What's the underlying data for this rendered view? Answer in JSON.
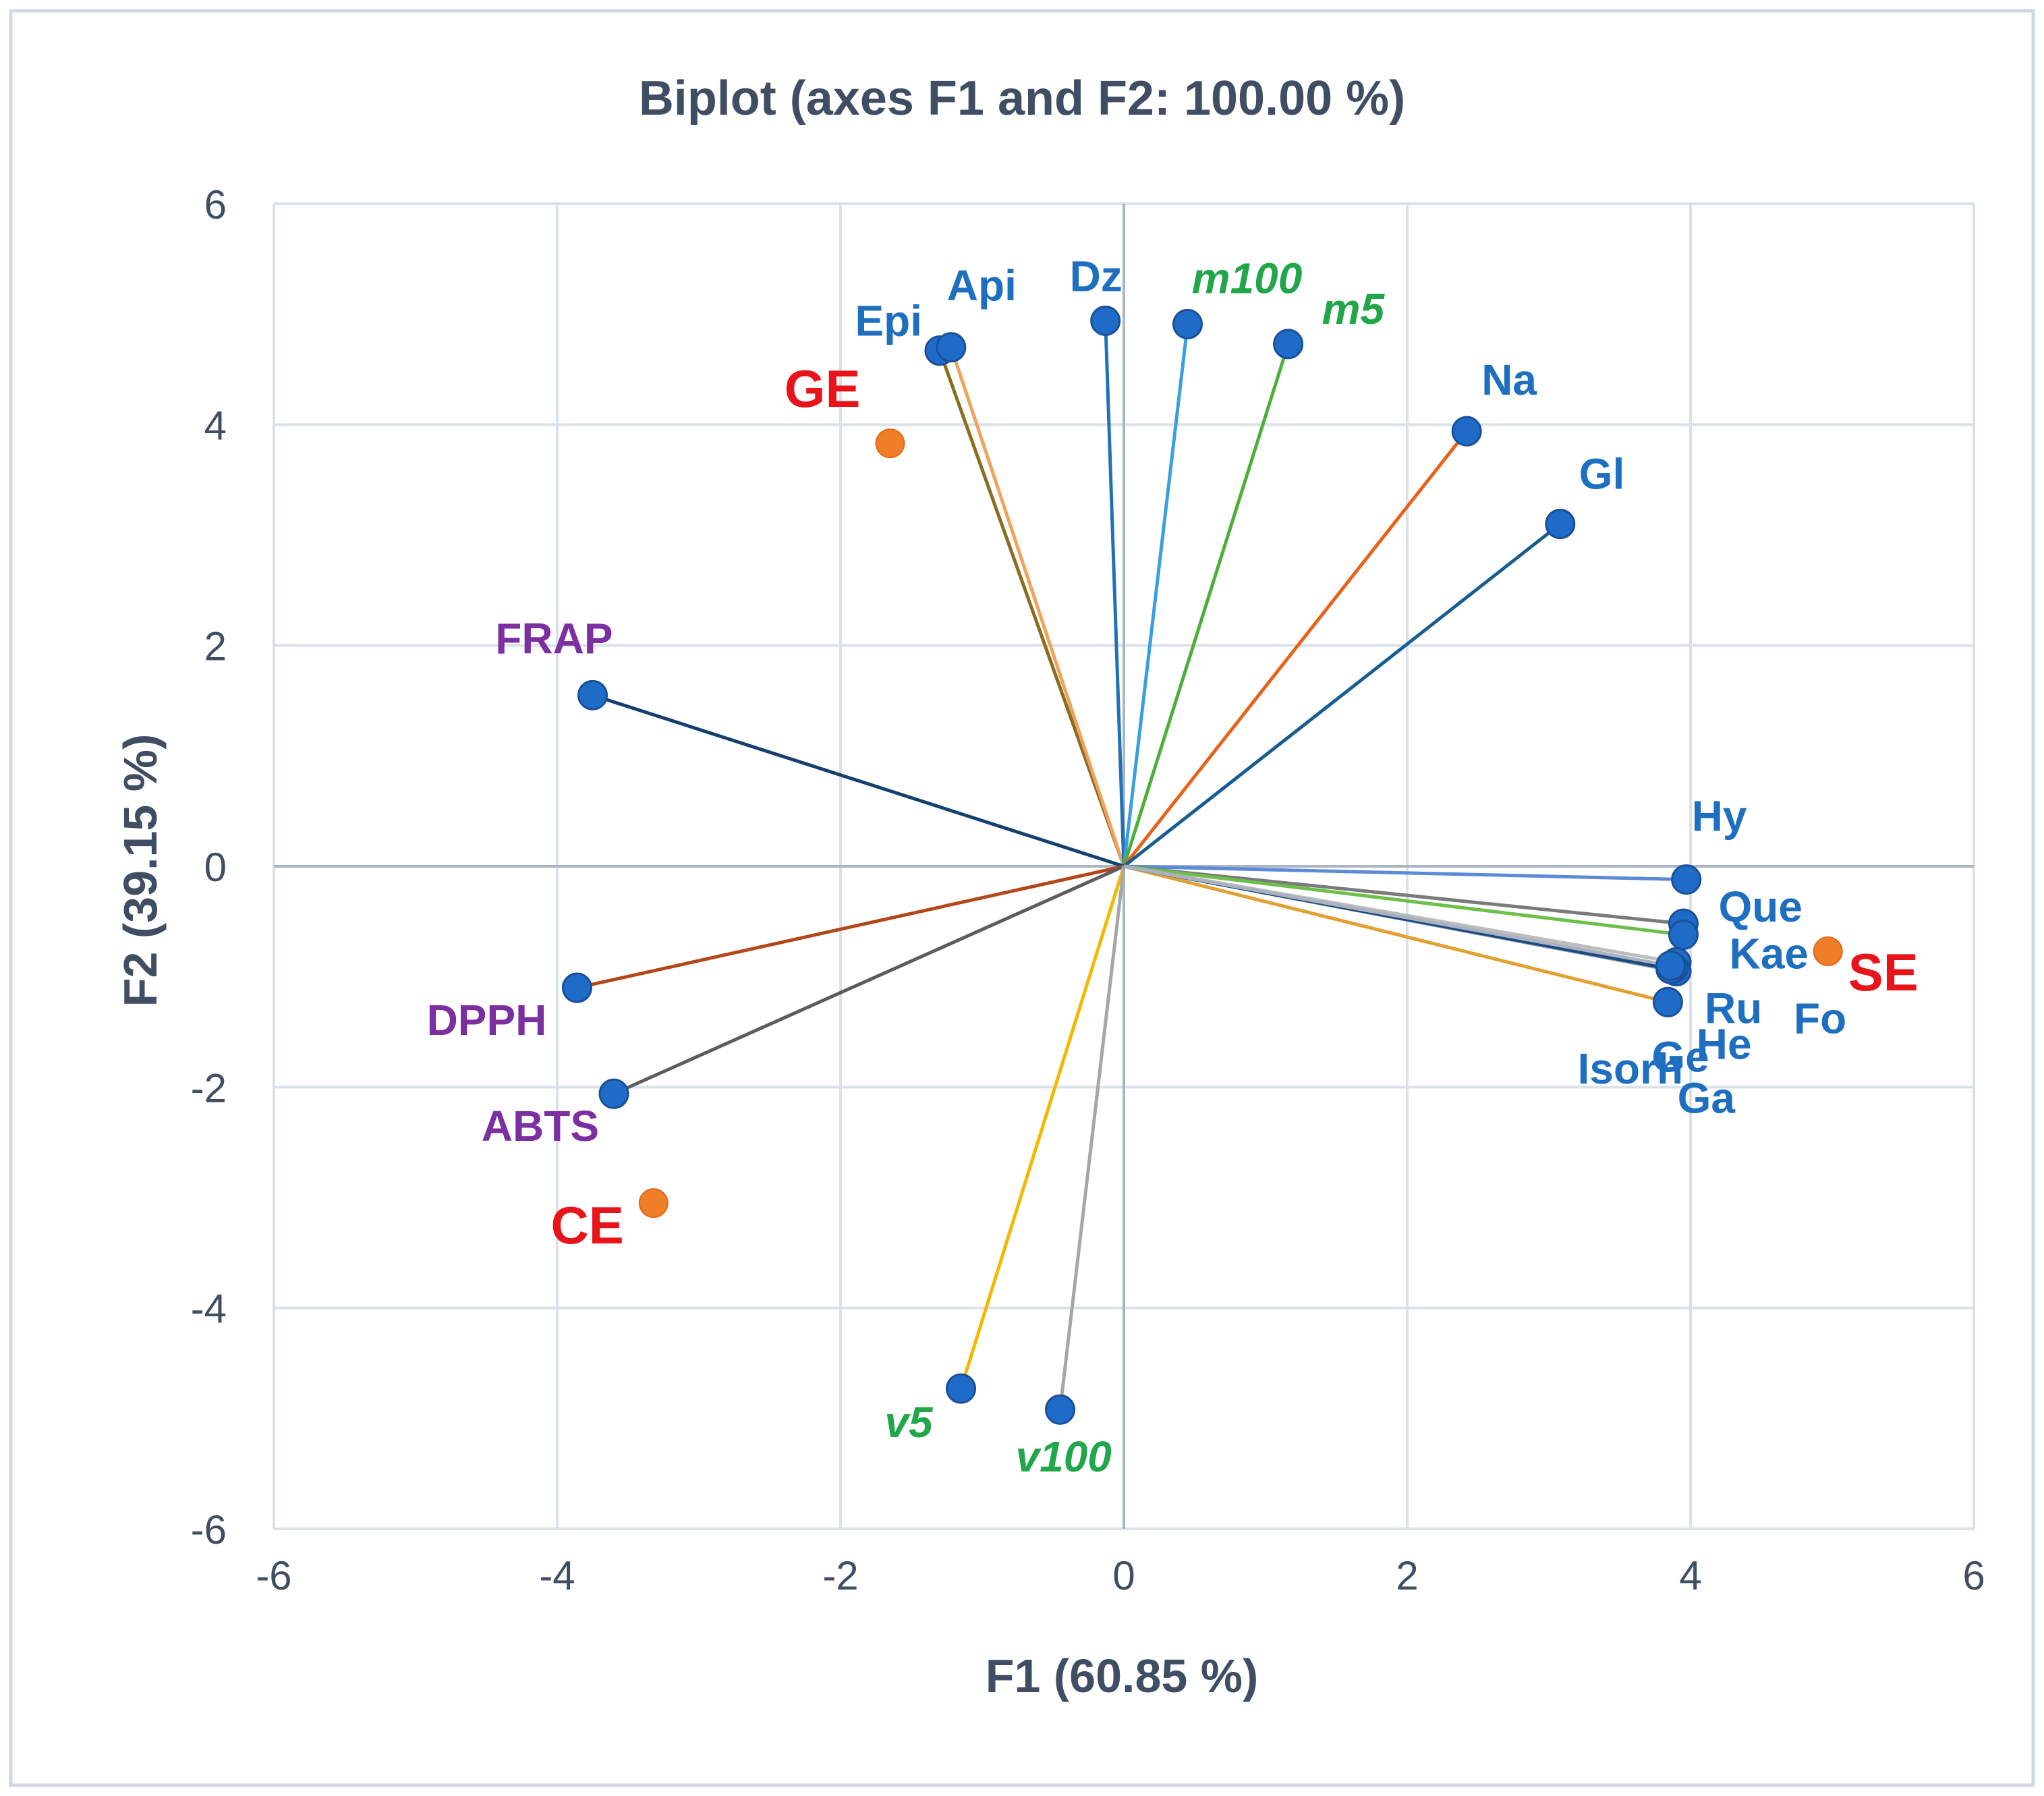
{
  "chart_data": {
    "type": "scatter",
    "title": "Biplot (axes F1 and F2: 100.00 %)",
    "xlabel": "F1 (60.85 %)",
    "ylabel": "F2 (39.15 %)",
    "xlim": [
      -6,
      6
    ],
    "ylim": [
      -6,
      6
    ],
    "xticks": [
      "-6",
      "-4",
      "-2",
      "0",
      "2",
      "4",
      "6"
    ],
    "yticks": [
      "6",
      "4",
      "2",
      "0",
      "-2",
      "-4",
      "-6"
    ],
    "grid": true,
    "variables": [
      {
        "label": "Epi",
        "x": -1.3,
        "y": 4.67,
        "line_color": "#8a6d1e",
        "label_color": "#1e6fbf",
        "italic": false
      },
      {
        "label": "Api",
        "x": -1.22,
        "y": 4.7,
        "line_color": "#f0a35a",
        "label_color": "#1e6fbf",
        "italic": false
      },
      {
        "label": "Dz",
        "x": -0.13,
        "y": 4.94,
        "line_color": "#1f72b8",
        "label_color": "#1e6fbf",
        "italic": false
      },
      {
        "label": "m100",
        "x": 0.45,
        "y": 4.91,
        "line_color": "#3aa0dd",
        "label_color": "#21a64a",
        "italic": true
      },
      {
        "label": "m5",
        "x": 1.16,
        "y": 4.73,
        "line_color": "#4caf3a",
        "label_color": "#21a64a",
        "italic": true
      },
      {
        "label": "Na",
        "x": 2.42,
        "y": 3.94,
        "line_color": "#e8621a",
        "label_color": "#1e6fbf",
        "italic": false
      },
      {
        "label": "Gl",
        "x": 3.08,
        "y": 3.1,
        "line_color": "#175d92",
        "label_color": "#1e6fbf",
        "italic": false
      },
      {
        "label": "FRAP",
        "x": -3.75,
        "y": 1.55,
        "line_color": "#14406e",
        "label_color": "#7b2fa0",
        "italic": false
      },
      {
        "label": "Hy",
        "x": 3.97,
        "y": -0.12,
        "line_color": "#5b8bd8",
        "label_color": "#1e6fbf",
        "italic": false
      },
      {
        "label": "Que",
        "x": 3.95,
        "y": -0.52,
        "line_color": "#7a7a7a",
        "label_color": "#1e6fbf",
        "italic": false
      },
      {
        "label": "Kae",
        "x": 3.95,
        "y": -0.62,
        "line_color": "#6cc04a",
        "label_color": "#1e6fbf",
        "italic": false
      },
      {
        "label": "Ru",
        "x": 3.9,
        "y": -0.87,
        "line_color": "#bdbdbd",
        "label_color": "#1e6fbf",
        "italic": false
      },
      {
        "label": "Fo",
        "x": 3.9,
        "y": -0.95,
        "line_color": "#9e9e9e",
        "label_color": "#1e6fbf",
        "italic": false
      },
      {
        "label": "He",
        "x": 3.88,
        "y": -0.92,
        "line_color": "#2a5ca8",
        "label_color": "#1e6fbf",
        "italic": false
      },
      {
        "label": "Ge",
        "x": 3.84,
        "y": -1.23,
        "line_color": "#e2a030",
        "label_color": "#1e6fbf",
        "italic": false
      },
      {
        "label": "Isorh",
        "x": 3.86,
        "y": -0.93,
        "line_color": "#164a86",
        "label_color": "#1e6fbf",
        "italic": false
      },
      {
        "label": "Ga",
        "x": 3.86,
        "y": -0.9,
        "line_color": "#aab2c0",
        "label_color": "#1e6fbf",
        "italic": false
      },
      {
        "label": "DPPH",
        "x": -3.86,
        "y": -1.1,
        "line_color": "#b4471a",
        "label_color": "#7b2fa0",
        "italic": false
      },
      {
        "label": "ABTS",
        "x": -3.6,
        "y": -2.06,
        "line_color": "#5c5c5c",
        "label_color": "#7b2fa0",
        "italic": false
      },
      {
        "label": "v5",
        "x": -1.15,
        "y": -4.73,
        "line_color": "#f5b800",
        "label_color": "#21a64a",
        "italic": true
      },
      {
        "label": "v100",
        "x": -0.45,
        "y": -4.92,
        "line_color": "#a6a6a6",
        "label_color": "#21a64a",
        "italic": true
      }
    ],
    "observations": [
      {
        "label": "GE",
        "x": -1.65,
        "y": 3.83,
        "point_color": "#f07d28",
        "label_color": "#e8131b"
      },
      {
        "label": "SE",
        "x": 4.97,
        "y": -0.77,
        "point_color": "#f07d28",
        "label_color": "#e8131b"
      },
      {
        "label": "CE",
        "x": -3.32,
        "y": -3.05,
        "point_color": "#f07d28",
        "label_color": "#e8131b"
      }
    ],
    "variable_point_color": "#1f6cc8"
  }
}
